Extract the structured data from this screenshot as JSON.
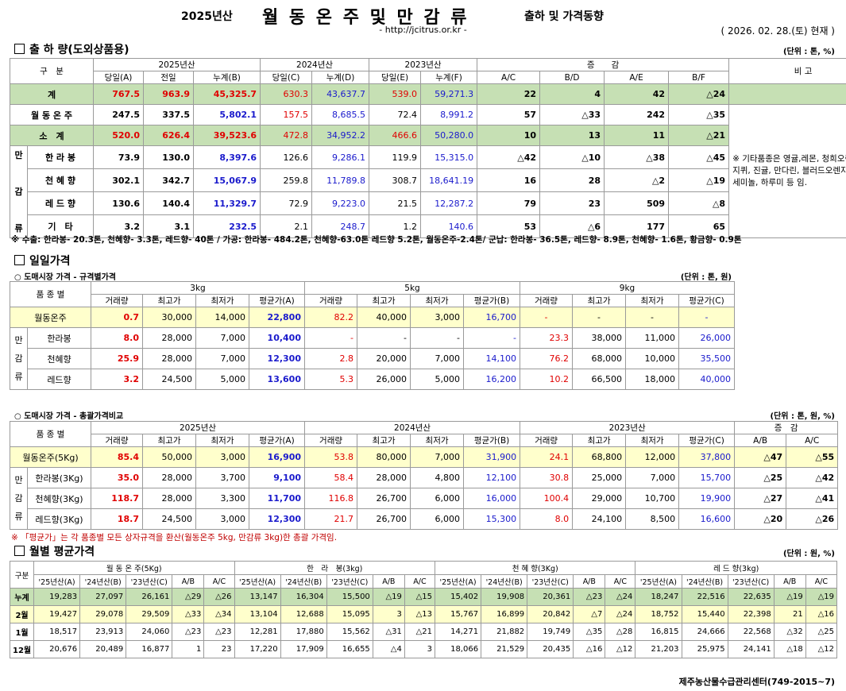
{
  "header": {
    "year": "2025년산",
    "title": "월 동 온 주 및 만 감 류",
    "subtitle": "출하 및 가격동향",
    "url": "- http://jcitrus.or.kr -",
    "asof": "( 2026. 02. 28.(토) 현재 )"
  },
  "shipment": {
    "section_title": "출 하 량(도외상품용)",
    "unit": "(단위 : 톤, %)",
    "col_group": "구　분",
    "y2025": "2025년산",
    "y2024": "2024년산",
    "y2023": "2023년산",
    "diff": "증　　감",
    "remark_head": "비 고",
    "subcols": [
      "당일(A)",
      "전일",
      "누계(B)",
      "당일(C)",
      "누계(D)",
      "당일(E)",
      "누계(F)",
      "A/C",
      "B/D",
      "A/E",
      "B/F"
    ],
    "mangam_label": "만감류",
    "rows": [
      {
        "label": "계",
        "v": [
          "767.5",
          "963.9",
          "45,325.7",
          "630.3",
          "43,637.7",
          "539.0",
          "59,271.3",
          "22",
          "4",
          "42",
          "△24"
        ]
      },
      {
        "label": "월 동 온 주",
        "v": [
          "247.5",
          "337.5",
          "5,802.1",
          "157.5",
          "8,685.5",
          "72.4",
          "8,991.2",
          "57",
          "△33",
          "242",
          "△35"
        ]
      },
      {
        "label": "소　계",
        "v": [
          "520.0",
          "626.4",
          "39,523.6",
          "472.8",
          "34,952.2",
          "466.6",
          "50,280.0",
          "10",
          "13",
          "11",
          "△21"
        ]
      },
      {
        "label": "한 라 봉",
        "v": [
          "73.9",
          "130.0",
          "8,397.6",
          "126.6",
          "9,286.1",
          "119.9",
          "15,315.0",
          "△42",
          "△10",
          "△38",
          "△45"
        ]
      },
      {
        "label": "천 혜 향",
        "v": [
          "302.1",
          "342.7",
          "15,067.9",
          "259.8",
          "11,789.8",
          "308.7",
          "18,641.19",
          "16",
          "28",
          "△2",
          "△19"
        ]
      },
      {
        "label": "레 드 향",
        "v": [
          "130.6",
          "140.4",
          "11,329.7",
          "72.9",
          "9,223.0",
          "21.5",
          "12,287.2",
          "79",
          "23",
          "509",
          "△8"
        ]
      },
      {
        "label": "기　타",
        "v": [
          "3.2",
          "3.1",
          "232.5",
          "2.1",
          "248.7",
          "1.2",
          "140.6",
          "53",
          "△6",
          "177",
          "65"
        ]
      }
    ],
    "remark": "※ 기타품종은 영귤,레몬, 청희오렌지, 진지퀴, 진귤, 만다린, 블러드오렌지, 폰깡,세미놀, 하루미 등 임.",
    "footnote": "※ 수출: 한라봉- 20.3톤, 천혜향- 3.3톤, 레드향- 40톤 / 가공: 한라봉- 484.2톤, 천혜향-63.0톤 레드향 5.2톤, 월동온주-2.4톤/ 군납: 한라봉- 36.5톤, 레드향- 8.9톤, 천혜향- 1.6톤, 황금향- 0.9톤"
  },
  "daily": {
    "section_title": "일일가격",
    "sub_title": "○ 도매시장 가격 - 규격별가격",
    "unit": "(단위 : 톤, 원)",
    "col_variety": "품 종 별",
    "sizes": [
      "3kg",
      "5kg",
      "9kg"
    ],
    "subcols": [
      "거래량",
      "최고가",
      "최저가",
      "평균가(A)",
      "거래량",
      "최고가",
      "최저가",
      "평균가(B)",
      "거래량",
      "최고가",
      "최저가",
      "평균가(C)"
    ],
    "mangam_label": "만감류",
    "rows": [
      {
        "label": "월동온주",
        "v": [
          "0.7",
          "30,000",
          "14,000",
          "22,800",
          "82.2",
          "40,000",
          "3,000",
          "16,700",
          "-",
          "-",
          "-",
          "-"
        ]
      },
      {
        "label": "한라봉",
        "v": [
          "8.0",
          "28,000",
          "7,000",
          "10,400",
          "-",
          "-",
          "-",
          "-",
          "23.3",
          "38,000",
          "11,000",
          "26,000"
        ]
      },
      {
        "label": "천혜향",
        "v": [
          "25.9",
          "28,000",
          "7,000",
          "12,300",
          "2.8",
          "20,000",
          "7,000",
          "14,100",
          "76.2",
          "68,000",
          "10,000",
          "35,500"
        ]
      },
      {
        "label": "레드향",
        "v": [
          "3.2",
          "24,500",
          "5,000",
          "13,600",
          "5.3",
          "26,000",
          "5,000",
          "16,200",
          "10.2",
          "66,500",
          "18,000",
          "40,000"
        ]
      }
    ]
  },
  "comparison": {
    "sub_title": "○ 도매시장 가격 - 총괄가격비교",
    "unit": "(단위 : 톤, 원, %)",
    "col_variety": "품 종 별",
    "years": [
      "2025년산",
      "2024년산",
      "2023년산"
    ],
    "diff": "증　감",
    "subcols": [
      "거래량",
      "최고가",
      "최저가",
      "평균가(A)",
      "거래량",
      "최고가",
      "최저가",
      "평균가(B)",
      "거래량",
      "최고가",
      "최저가",
      "평균가(C)",
      "A/B",
      "A/C"
    ],
    "mangam_label": "만감류",
    "rows": [
      {
        "label": "월동온주(5Kg)",
        "v": [
          "85.4",
          "50,000",
          "3,000",
          "16,900",
          "53.8",
          "80,000",
          "7,000",
          "31,900",
          "24.1",
          "68,800",
          "12,000",
          "37,800",
          "△47",
          "△55"
        ]
      },
      {
        "label": "한라봉(3Kg)",
        "v": [
          "35.0",
          "28,000",
          "3,700",
          "9,100",
          "58.4",
          "28,000",
          "4,800",
          "12,100",
          "30.8",
          "25,000",
          "7,000",
          "15,700",
          "△25",
          "△42"
        ]
      },
      {
        "label": "천혜향(3Kg)",
        "v": [
          "118.7",
          "28,000",
          "3,300",
          "11,700",
          "116.8",
          "26,700",
          "6,000",
          "16,000",
          "100.4",
          "29,000",
          "10,700",
          "19,900",
          "△27",
          "△41"
        ]
      },
      {
        "label": "레드향(3Kg)",
        "v": [
          "18.7",
          "24,500",
          "3,000",
          "12,300",
          "21.7",
          "26,700",
          "6,000",
          "15,300",
          "8.0",
          "24,100",
          "8,500",
          "16,600",
          "△20",
          "△26"
        ]
      }
    ],
    "note": "※ 「평균가」는 각 품종별 모든 상자규격을 환산(월동온주 5kg, 만감류 3kg)한 총괄 가격임."
  },
  "monthly": {
    "section_title": "월별 평균가격",
    "unit": "(단위 : 원, %)",
    "col_group": "구분",
    "groups": [
      "월 동 온 주(5Kg)",
      "한　라　봉(3kg)",
      "천 혜 향(3Kg)",
      "레 드 향(3kg)"
    ],
    "subcols": [
      "'25년산(A)",
      "'24년산(B)",
      "'23년산(C)",
      "A/B",
      "A/C"
    ],
    "rows": [
      {
        "label": "누계",
        "v": [
          "19,283",
          "27,097",
          "26,161",
          "△29",
          "△26",
          "13,147",
          "16,304",
          "15,500",
          "△19",
          "△15",
          "15,402",
          "19,908",
          "20,361",
          "△23",
          "△24",
          "18,247",
          "22,516",
          "22,635",
          "△19",
          "△19"
        ]
      },
      {
        "label": "2월",
        "v": [
          "19,427",
          "29,078",
          "29,509",
          "△33",
          "△34",
          "13,104",
          "12,688",
          "15,095",
          "3",
          "△13",
          "15,767",
          "16,899",
          "20,842",
          "△7",
          "△24",
          "18,752",
          "15,440",
          "22,398",
          "21",
          "△16"
        ]
      },
      {
        "label": "1월",
        "v": [
          "18,517",
          "23,913",
          "24,060",
          "△23",
          "△23",
          "12,281",
          "17,880",
          "15,562",
          "△31",
          "△21",
          "14,271",
          "21,882",
          "19,749",
          "△35",
          "△28",
          "16,815",
          "24,666",
          "22,568",
          "△32",
          "△25"
        ]
      },
      {
        "label": "12월",
        "v": [
          "20,676",
          "20,489",
          "16,877",
          "1",
          "23",
          "17,220",
          "17,909",
          "16,655",
          "△4",
          "3",
          "18,066",
          "21,529",
          "20,435",
          "△16",
          "△12",
          "21,203",
          "25,975",
          "24,141",
          "△18",
          "△12"
        ]
      }
    ]
  },
  "footer": "제주농산물수급관리센터(749-2015~7)"
}
